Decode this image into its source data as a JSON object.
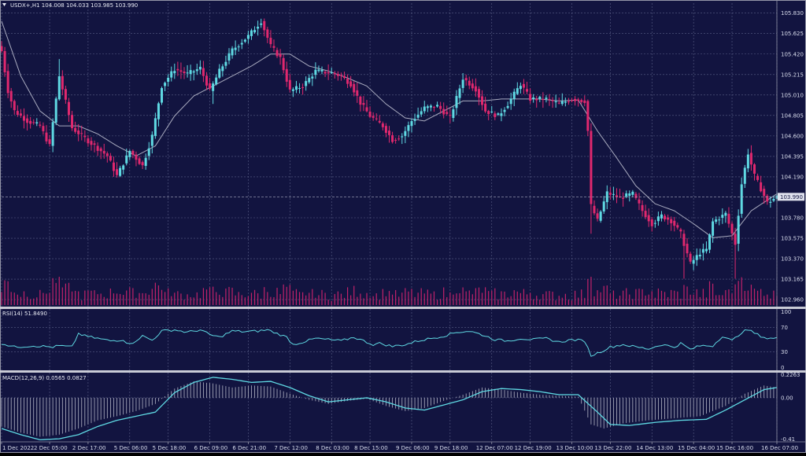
{
  "colors": {
    "background": "#121440",
    "grid": "#5a5f86",
    "bull": "#5fd9e3",
    "bear": "#e0286e",
    "ma": "#a9abbf",
    "rsi": "#5fd9e3",
    "macd": "#5fd9e3",
    "hist": "#b4b6c6",
    "volume": "#c0226a",
    "divider": "#9496a8",
    "text": "#d8dcec"
  },
  "chart_data": [
    {
      "type": "candlestick",
      "title": "USDX+,H1 104.008 104.033 103.985 103.990",
      "price_labels": [
        "105.830",
        "105.625",
        "105.420",
        "105.215",
        "105.010",
        "104.805",
        "104.600",
        "104.395",
        "104.190",
        "103.780",
        "103.575",
        "103.370",
        "103.165",
        "102.960"
      ],
      "price_ticks": [
        105.83,
        105.625,
        105.42,
        105.215,
        105.01,
        104.805,
        104.6,
        104.395,
        104.19,
        103.78,
        103.575,
        103.37,
        103.165,
        102.96
      ],
      "ylim": [
        102.89,
        105.93
      ],
      "current_price": 103.99,
      "current_price_label": "103.990",
      "time_labels": [
        "1 Dec 2022",
        "2 Dec 05:00",
        "2 Dec 17:00",
        "5 Dec 06:00",
        "5 Dec 18:00",
        "6 Dec 09:00",
        "6 Dec 21:00",
        "7 Dec 12:00",
        "8 Dec 03:00",
        "8 Dec 15:00",
        "9 Dec 06:00",
        "9 Dec 18:00",
        "12 Dec 07:00",
        "12 Dec 19:00",
        "13 Dec 10:00",
        "13 Dec 22:00",
        "14 Dec 13:00",
        "15 Dec 04:00",
        "15 Dec 16:00",
        "16 Dec 07:00"
      ],
      "time_label_index": [
        0,
        15,
        27,
        40,
        52,
        65,
        77,
        90,
        103,
        115,
        128,
        140,
        153,
        165,
        178,
        190,
        203,
        216,
        228,
        242
      ],
      "anchors": [
        [
          0,
          105.45
        ],
        [
          2,
          105.05
        ],
        [
          4,
          104.85
        ],
        [
          8,
          104.75
        ],
        [
          12,
          104.7
        ],
        [
          15,
          104.5
        ],
        [
          18,
          105.2
        ],
        [
          22,
          104.68
        ],
        [
          27,
          104.55
        ],
        [
          33,
          104.4
        ],
        [
          36,
          104.2
        ],
        [
          40,
          104.45
        ],
        [
          44,
          104.3
        ],
        [
          47,
          104.6
        ],
        [
          50,
          105.1
        ],
        [
          54,
          105.27
        ],
        [
          58,
          105.22
        ],
        [
          62,
          105.28
        ],
        [
          65,
          105.05
        ],
        [
          68,
          105.25
        ],
        [
          72,
          105.46
        ],
        [
          77,
          105.6
        ],
        [
          81,
          105.75
        ],
        [
          84,
          105.5
        ],
        [
          87,
          105.38
        ],
        [
          90,
          105.05
        ],
        [
          94,
          105.1
        ],
        [
          98,
          105.25
        ],
        [
          103,
          105.23
        ],
        [
          106,
          105.2
        ],
        [
          109,
          105.12
        ],
        [
          112,
          104.93
        ],
        [
          115,
          104.8
        ],
        [
          119,
          104.7
        ],
        [
          122,
          104.56
        ],
        [
          125,
          104.6
        ],
        [
          128,
          104.75
        ],
        [
          132,
          104.88
        ],
        [
          136,
          104.9
        ],
        [
          140,
          104.78
        ],
        [
          144,
          105.18
        ],
        [
          148,
          105.07
        ],
        [
          151,
          104.85
        ],
        [
          155,
          104.8
        ],
        [
          158,
          104.92
        ],
        [
          162,
          105.12
        ],
        [
          165,
          104.97
        ],
        [
          170,
          104.97
        ],
        [
          174,
          104.92
        ],
        [
          178,
          104.97
        ],
        [
          182,
          104.95
        ],
        [
          183,
          104.65
        ],
        [
          184,
          103.9
        ],
        [
          186,
          103.75
        ],
        [
          189,
          104.03
        ],
        [
          193,
          103.98
        ],
        [
          197,
          104.02
        ],
        [
          200,
          103.85
        ],
        [
          203,
          103.72
        ],
        [
          206,
          103.8
        ],
        [
          209,
          103.75
        ],
        [
          212,
          103.62
        ],
        [
          215,
          103.32
        ],
        [
          218,
          103.43
        ],
        [
          220,
          103.46
        ],
        [
          222,
          103.74
        ],
        [
          226,
          103.82
        ],
        [
          229,
          103.52
        ],
        [
          231,
          104.12
        ],
        [
          233,
          104.43
        ],
        [
          235,
          104.2
        ],
        [
          237,
          104.07
        ],
        [
          239,
          103.93
        ],
        [
          242,
          103.99
        ]
      ],
      "ma_anchors": [
        [
          0,
          105.75
        ],
        [
          6,
          105.2
        ],
        [
          12,
          104.85
        ],
        [
          18,
          104.7
        ],
        [
          24,
          104.7
        ],
        [
          30,
          104.62
        ],
        [
          36,
          104.5
        ],
        [
          42,
          104.4
        ],
        [
          48,
          104.5
        ],
        [
          54,
          104.8
        ],
        [
          60,
          105.0
        ],
        [
          66,
          105.1
        ],
        [
          72,
          105.2
        ],
        [
          78,
          105.3
        ],
        [
          84,
          105.42
        ],
        [
          90,
          105.42
        ],
        [
          96,
          105.3
        ],
        [
          102,
          105.25
        ],
        [
          108,
          105.18
        ],
        [
          114,
          105.1
        ],
        [
          120,
          104.92
        ],
        [
          126,
          104.78
        ],
        [
          132,
          104.75
        ],
        [
          138,
          104.85
        ],
        [
          144,
          104.95
        ],
        [
          150,
          104.95
        ],
        [
          156,
          104.97
        ],
        [
          162,
          104.97
        ],
        [
          168,
          104.97
        ],
        [
          174,
          104.95
        ],
        [
          180,
          104.96
        ],
        [
          186,
          104.65
        ],
        [
          192,
          104.38
        ],
        [
          198,
          104.1
        ],
        [
          204,
          103.92
        ],
        [
          210,
          103.85
        ],
        [
          216,
          103.72
        ],
        [
          222,
          103.58
        ],
        [
          228,
          103.6
        ],
        [
          234,
          103.85
        ],
        [
          242,
          104.02
        ]
      ]
    },
    {
      "type": "line",
      "title": "RSI(14) 51.8490",
      "levels_labels": [
        "100",
        "70",
        "30",
        "0"
      ],
      "levels": [
        100,
        70,
        30,
        0
      ],
      "ylim": [
        0,
        100
      ],
      "anchors": [
        [
          0,
          44
        ],
        [
          4,
          38
        ],
        [
          10,
          40
        ],
        [
          16,
          38
        ],
        [
          18,
          40
        ],
        [
          22,
          38
        ],
        [
          24,
          60
        ],
        [
          26,
          56
        ],
        [
          30,
          52
        ],
        [
          34,
          48
        ],
        [
          38,
          50
        ],
        [
          40,
          42
        ],
        [
          44,
          56
        ],
        [
          47,
          49
        ],
        [
          50,
          64
        ],
        [
          54,
          66
        ],
        [
          58,
          62
        ],
        [
          62,
          66
        ],
        [
          65,
          58
        ],
        [
          68,
          54
        ],
        [
          72,
          64
        ],
        [
          76,
          63
        ],
        [
          80,
          64
        ],
        [
          83,
          66
        ],
        [
          86,
          60
        ],
        [
          89,
          54
        ],
        [
          91,
          42
        ],
        [
          94,
          46
        ],
        [
          98,
          52
        ],
        [
          102,
          50
        ],
        [
          106,
          48
        ],
        [
          110,
          54
        ],
        [
          113,
          48
        ],
        [
          116,
          42
        ],
        [
          118,
          44
        ],
        [
          122,
          39
        ],
        [
          126,
          42
        ],
        [
          130,
          48
        ],
        [
          134,
          52
        ],
        [
          138,
          56
        ],
        [
          142,
          62
        ],
        [
          146,
          64
        ],
        [
          150,
          58
        ],
        [
          154,
          50
        ],
        [
          158,
          48
        ],
        [
          162,
          52
        ],
        [
          166,
          50
        ],
        [
          170,
          52
        ],
        [
          174,
          46
        ],
        [
          178,
          50
        ],
        [
          182,
          48
        ],
        [
          184,
          24
        ],
        [
          186,
          28
        ],
        [
          190,
          38
        ],
        [
          194,
          42
        ],
        [
          198,
          38
        ],
        [
          202,
          35
        ],
        [
          206,
          42
        ],
        [
          210,
          38
        ],
        [
          212,
          44
        ],
        [
          215,
          34
        ],
        [
          218,
          40
        ],
        [
          222,
          40
        ],
        [
          225,
          56
        ],
        [
          228,
          48
        ],
        [
          231,
          62
        ],
        [
          233,
          66
        ],
        [
          236,
          58
        ],
        [
          239,
          52
        ],
        [
          242,
          52
        ]
      ]
    },
    {
      "type": "line",
      "title": "MACD(12,26,9) 0.0565 0.0827",
      "level_labels": [
        "0.2263",
        "0.00",
        "-0.41"
      ],
      "levels": [
        0.2263,
        0.0,
        -0.41
      ],
      "ylim": [
        -0.43,
        0.245
      ],
      "signal_anchors": [
        [
          0,
          -0.3
        ],
        [
          6,
          -0.36
        ],
        [
          12,
          -0.41
        ],
        [
          18,
          -0.4
        ],
        [
          24,
          -0.36
        ],
        [
          30,
          -0.28
        ],
        [
          36,
          -0.22
        ],
        [
          42,
          -0.18
        ],
        [
          48,
          -0.14
        ],
        [
          54,
          0.05
        ],
        [
          60,
          0.15
        ],
        [
          66,
          0.2
        ],
        [
          72,
          0.18
        ],
        [
          78,
          0.15
        ],
        [
          84,
          0.16
        ],
        [
          90,
          0.1
        ],
        [
          96,
          0.02
        ],
        [
          102,
          -0.04
        ],
        [
          108,
          -0.02
        ],
        [
          114,
          0.0
        ],
        [
          120,
          -0.04
        ],
        [
          126,
          -0.1
        ],
        [
          132,
          -0.12
        ],
        [
          138,
          -0.07
        ],
        [
          144,
          -0.02
        ],
        [
          150,
          0.06
        ],
        [
          156,
          0.09
        ],
        [
          162,
          0.08
        ],
        [
          168,
          0.06
        ],
        [
          174,
          0.03
        ],
        [
          180,
          0.03
        ],
        [
          186,
          -0.14
        ],
        [
          190,
          -0.26
        ],
        [
          196,
          -0.27
        ],
        [
          204,
          -0.24
        ],
        [
          212,
          -0.22
        ],
        [
          220,
          -0.21
        ],
        [
          226,
          -0.12
        ],
        [
          232,
          -0.02
        ],
        [
          238,
          0.08
        ],
        [
          242,
          0.1
        ]
      ],
      "hist_anchors": [
        [
          0,
          -0.28
        ],
        [
          6,
          -0.34
        ],
        [
          12,
          -0.38
        ],
        [
          18,
          -0.36
        ],
        [
          24,
          -0.3
        ],
        [
          30,
          -0.22
        ],
        [
          36,
          -0.18
        ],
        [
          42,
          -0.13
        ],
        [
          48,
          -0.06
        ],
        [
          54,
          0.09
        ],
        [
          60,
          0.16
        ],
        [
          66,
          0.14
        ],
        [
          72,
          0.1
        ],
        [
          78,
          0.12
        ],
        [
          84,
          0.11
        ],
        [
          90,
          0.04
        ],
        [
          96,
          -0.02
        ],
        [
          102,
          -0.06
        ],
        [
          108,
          -0.03
        ],
        [
          114,
          -0.01
        ],
        [
          120,
          -0.08
        ],
        [
          126,
          -0.13
        ],
        [
          132,
          -0.1
        ],
        [
          138,
          -0.03
        ],
        [
          144,
          0.03
        ],
        [
          150,
          0.1
        ],
        [
          156,
          0.08
        ],
        [
          162,
          0.05
        ],
        [
          168,
          0.03
        ],
        [
          174,
          0.02
        ],
        [
          180,
          0.01
        ],
        [
          184,
          -0.26
        ],
        [
          188,
          -0.3
        ],
        [
          194,
          -0.25
        ],
        [
          202,
          -0.22
        ],
        [
          210,
          -0.2
        ],
        [
          218,
          -0.18
        ],
        [
          226,
          -0.08
        ],
        [
          232,
          0.04
        ],
        [
          238,
          0.12
        ],
        [
          242,
          0.1
        ]
      ]
    }
  ]
}
